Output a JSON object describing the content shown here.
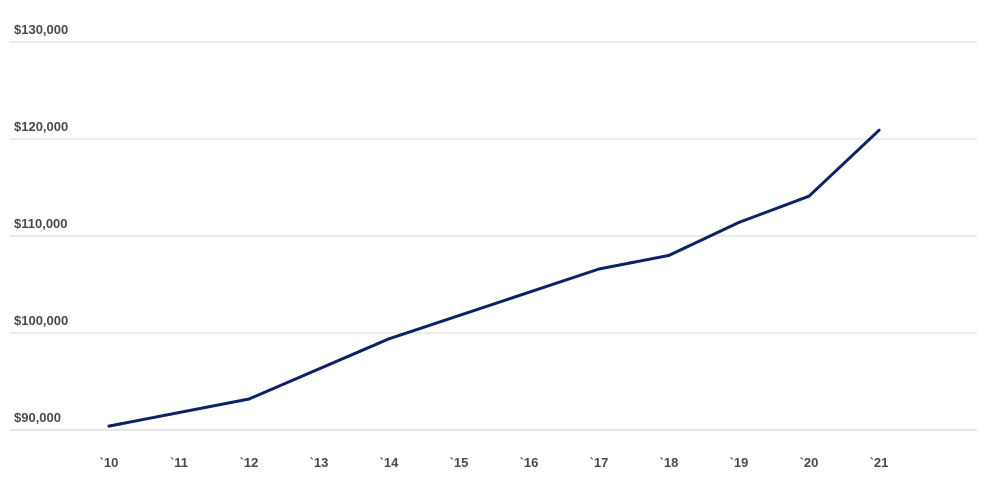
{
  "chart_data": {
    "type": "line",
    "title": "",
    "xlabel": "",
    "ylabel": "",
    "categories": [
      "`10",
      "`11",
      "`12",
      "`13",
      "`14",
      "`15",
      "`16",
      "`17",
      "`18",
      "`19",
      "`20",
      "`21"
    ],
    "x_tick_labels": [
      "`10",
      "`11",
      "`12",
      "`13",
      "`14",
      "`15",
      "`16",
      "`17",
      "`18",
      "`19",
      "`20",
      "`21"
    ],
    "y_tick_values": [
      90000,
      100000,
      110000,
      120000,
      130000
    ],
    "y_tick_labels": [
      "$90,000",
      "$100,000",
      "$110,000",
      "$120,000",
      "$130,000"
    ],
    "ylim": [
      90000,
      130000
    ],
    "grid": true,
    "legend": "none",
    "series": [
      {
        "color": "#0b2265",
        "values": [
          90400,
          null,
          93200,
          null,
          99400,
          null,
          null,
          106600,
          108000,
          111400,
          114100,
          120900
        ],
        "points": [
          {
            "x": "`10",
            "y": 90400
          },
          {
            "x": "`12",
            "y": 93200
          },
          {
            "x": "`14",
            "y": 99400
          },
          {
            "x": "`17",
            "y": 106600
          },
          {
            "x": "`18",
            "y": 108000
          },
          {
            "x": "`19",
            "y": 111400
          },
          {
            "x": "`20",
            "y": 114100
          },
          {
            "x": "`21",
            "y": 120900
          }
        ]
      }
    ]
  }
}
